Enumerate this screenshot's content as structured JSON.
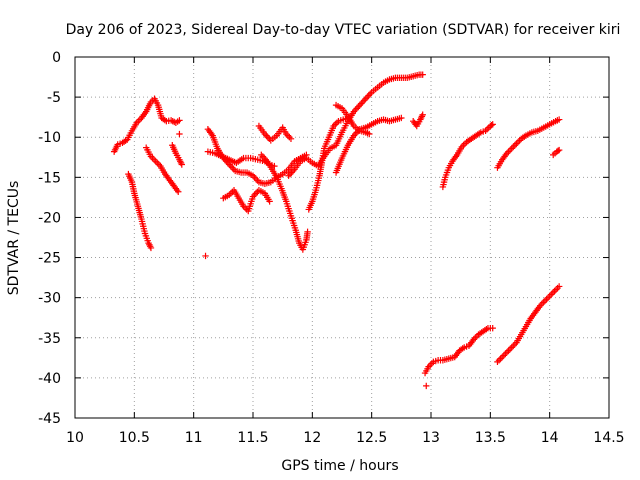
{
  "chart_data": {
    "type": "scatter",
    "title": "Day 206 of 2023, Sidereal Day-to-day VTEC variation (SDTVAR) for receiver kiri",
    "xlabel": "GPS time / hours",
    "ylabel": "SDTVAR / TECUs",
    "xlim": [
      10,
      14.5
    ],
    "ylim": [
      -45,
      0
    ],
    "xticks": [
      10,
      10.5,
      11,
      11.5,
      12,
      12.5,
      13,
      13.5,
      14,
      14.5
    ],
    "xtick_labels": [
      "10",
      "10.5",
      "11",
      "11.5",
      "12",
      "12.5",
      "13",
      "13.5",
      "14",
      "14.5"
    ],
    "yticks": [
      0,
      -5,
      -10,
      -15,
      -20,
      -25,
      -30,
      -35,
      -40,
      -45
    ],
    "ytick_labels": [
      "0",
      "-5",
      "-10",
      "-15",
      "-20",
      "-25",
      "-30",
      "-35",
      "-40",
      "-45"
    ],
    "grid": true,
    "marker": "+",
    "marker_color": "#ff0000",
    "series": [
      {
        "name": "track-1",
        "points": [
          [
            10.33,
            -11.8
          ],
          [
            10.36,
            -10.9
          ],
          [
            10.4,
            -10.7
          ],
          [
            10.44,
            -10.3
          ],
          [
            10.48,
            -9.2
          ],
          [
            10.52,
            -8.2
          ],
          [
            10.56,
            -7.6
          ],
          [
            10.6,
            -6.8
          ],
          [
            10.64,
            -5.6
          ],
          [
            10.67,
            -5.2
          ],
          [
            10.7,
            -6.0
          ],
          [
            10.73,
            -7.6
          ],
          [
            10.77,
            -8.0
          ],
          [
            10.81,
            -7.9
          ],
          [
            10.85,
            -8.2
          ],
          [
            10.88,
            -7.9
          ]
        ]
      },
      {
        "name": "track-2",
        "points": [
          [
            10.45,
            -14.6
          ],
          [
            10.48,
            -15.6
          ],
          [
            10.5,
            -17.0
          ],
          [
            10.53,
            -18.6
          ],
          [
            10.56,
            -20.2
          ],
          [
            10.59,
            -22.0
          ],
          [
            10.62,
            -23.2
          ],
          [
            10.64,
            -23.8
          ]
        ]
      },
      {
        "name": "track-3",
        "points": [
          [
            10.6,
            -11.3
          ],
          [
            10.64,
            -12.4
          ],
          [
            10.68,
            -13.0
          ],
          [
            10.72,
            -13.6
          ],
          [
            10.76,
            -14.6
          ],
          [
            10.8,
            -15.4
          ],
          [
            10.84,
            -16.2
          ],
          [
            10.87,
            -16.8
          ]
        ]
      },
      {
        "name": "track-4",
        "points": [
          [
            10.82,
            -11.0
          ],
          [
            10.85,
            -12.0
          ],
          [
            10.88,
            -12.8
          ],
          [
            10.9,
            -13.4
          ]
        ]
      },
      {
        "name": "track-5",
        "points": [
          [
            10.88,
            -9.6
          ]
        ]
      },
      {
        "name": "track-6",
        "points": [
          [
            11.1,
            -24.8
          ]
        ]
      },
      {
        "name": "track-7",
        "points": [
          [
            11.12,
            -9.0
          ],
          [
            11.16,
            -9.8
          ],
          [
            11.2,
            -11.4
          ],
          [
            11.25,
            -12.6
          ],
          [
            11.3,
            -13.4
          ],
          [
            11.35,
            -14.2
          ],
          [
            11.4,
            -14.4
          ],
          [
            11.45,
            -14.4
          ],
          [
            11.5,
            -14.8
          ],
          [
            11.55,
            -15.6
          ],
          [
            11.6,
            -15.8
          ],
          [
            11.65,
            -15.6
          ],
          [
            11.7,
            -15.0
          ],
          [
            11.75,
            -14.6
          ],
          [
            11.8,
            -14.0
          ],
          [
            11.85,
            -13.0
          ],
          [
            11.9,
            -12.6
          ],
          [
            11.95,
            -12.2
          ]
        ]
      },
      {
        "name": "track-8",
        "points": [
          [
            11.12,
            -11.8
          ],
          [
            11.18,
            -12.0
          ],
          [
            11.24,
            -12.4
          ],
          [
            11.3,
            -12.8
          ],
          [
            11.36,
            -13.2
          ],
          [
            11.42,
            -12.6
          ],
          [
            11.48,
            -12.6
          ],
          [
            11.54,
            -12.8
          ],
          [
            11.6,
            -13.0
          ],
          [
            11.64,
            -13.4
          ],
          [
            11.68,
            -13.6
          ]
        ]
      },
      {
        "name": "track-9",
        "points": [
          [
            11.25,
            -17.6
          ],
          [
            11.3,
            -17.2
          ],
          [
            11.34,
            -16.6
          ],
          [
            11.38,
            -17.6
          ],
          [
            11.42,
            -18.6
          ],
          [
            11.46,
            -19.2
          ],
          [
            11.5,
            -17.4
          ],
          [
            11.55,
            -16.6
          ],
          [
            11.6,
            -17.0
          ],
          [
            11.64,
            -18.0
          ]
        ]
      },
      {
        "name": "track-10",
        "points": [
          [
            11.55,
            -8.6
          ],
          [
            11.6,
            -9.6
          ],
          [
            11.65,
            -10.4
          ],
          [
            11.7,
            -9.8
          ],
          [
            11.75,
            -8.8
          ],
          [
            11.78,
            -9.6
          ],
          [
            11.82,
            -10.2
          ]
        ]
      },
      {
        "name": "track-11",
        "points": [
          [
            11.57,
            -12.2
          ],
          [
            11.62,
            -13.0
          ],
          [
            11.66,
            -14.0
          ],
          [
            11.7,
            -15.0
          ],
          [
            11.74,
            -16.4
          ],
          [
            11.78,
            -18.0
          ],
          [
            11.82,
            -19.8
          ],
          [
            11.86,
            -21.6
          ],
          [
            11.89,
            -23.2
          ],
          [
            11.92,
            -24.0
          ],
          [
            11.95,
            -22.8
          ],
          [
            11.96,
            -21.8
          ]
        ]
      },
      {
        "name": "track-12",
        "points": [
          [
            11.8,
            -14.8
          ],
          [
            11.85,
            -14.0
          ],
          [
            11.9,
            -13.0
          ],
          [
            11.95,
            -12.6
          ],
          [
            12.0,
            -13.2
          ],
          [
            12.05,
            -13.6
          ],
          [
            12.1,
            -12.4
          ],
          [
            12.15,
            -11.4
          ],
          [
            12.2,
            -11.0
          ],
          [
            12.25,
            -9.4
          ],
          [
            12.3,
            -8.0
          ],
          [
            12.35,
            -6.8
          ],
          [
            12.4,
            -6.0
          ],
          [
            12.45,
            -5.2
          ],
          [
            12.5,
            -4.4
          ],
          [
            12.55,
            -3.8
          ],
          [
            12.6,
            -3.2
          ],
          [
            12.65,
            -2.8
          ],
          [
            12.7,
            -2.6
          ],
          [
            12.75,
            -2.6
          ],
          [
            12.8,
            -2.6
          ],
          [
            12.85,
            -2.4
          ],
          [
            12.9,
            -2.2
          ],
          [
            12.93,
            -2.2
          ]
        ]
      },
      {
        "name": "track-13",
        "points": [
          [
            11.97,
            -19.0
          ],
          [
            12.0,
            -18.0
          ],
          [
            12.03,
            -16.6
          ],
          [
            12.06,
            -14.8
          ],
          [
            12.08,
            -13.2
          ],
          [
            12.1,
            -11.4
          ],
          [
            12.14,
            -10.0
          ],
          [
            12.18,
            -8.6
          ],
          [
            12.22,
            -8.0
          ],
          [
            12.26,
            -7.8
          ],
          [
            12.3,
            -7.6
          ]
        ]
      },
      {
        "name": "track-14",
        "points": [
          [
            12.2,
            -6.0
          ],
          [
            12.25,
            -6.4
          ],
          [
            12.3,
            -7.4
          ],
          [
            12.35,
            -8.6
          ],
          [
            12.4,
            -9.2
          ],
          [
            12.45,
            -9.4
          ],
          [
            12.48,
            -9.6
          ]
        ]
      },
      {
        "name": "track-15",
        "points": [
          [
            12.2,
            -14.4
          ],
          [
            12.25,
            -12.6
          ],
          [
            12.3,
            -11.0
          ],
          [
            12.35,
            -9.8
          ],
          [
            12.4,
            -9.0
          ],
          [
            12.45,
            -8.8
          ],
          [
            12.5,
            -8.4
          ],
          [
            12.55,
            -8.0
          ],
          [
            12.6,
            -7.8
          ],
          [
            12.65,
            -8.0
          ],
          [
            12.7,
            -7.8
          ],
          [
            12.75,
            -7.6
          ]
        ]
      },
      {
        "name": "track-16",
        "points": [
          [
            12.85,
            -8.0
          ],
          [
            12.88,
            -8.6
          ],
          [
            12.91,
            -7.8
          ],
          [
            12.93,
            -7.2
          ]
        ]
      },
      {
        "name": "track-17",
        "points": [
          [
            13.1,
            -16.2
          ],
          [
            13.12,
            -15.0
          ],
          [
            13.15,
            -13.8
          ],
          [
            13.18,
            -13.0
          ],
          [
            13.22,
            -12.2
          ],
          [
            13.26,
            -11.2
          ],
          [
            13.3,
            -10.6
          ],
          [
            13.34,
            -10.2
          ],
          [
            13.38,
            -9.8
          ],
          [
            13.42,
            -9.4
          ],
          [
            13.46,
            -9.2
          ],
          [
            13.5,
            -8.6
          ],
          [
            13.52,
            -8.4
          ]
        ]
      },
      {
        "name": "track-18",
        "points": [
          [
            13.56,
            -13.8
          ],
          [
            13.6,
            -12.8
          ],
          [
            13.64,
            -12.0
          ],
          [
            13.68,
            -11.4
          ],
          [
            13.72,
            -10.8
          ],
          [
            13.76,
            -10.2
          ],
          [
            13.8,
            -9.8
          ],
          [
            13.85,
            -9.4
          ],
          [
            13.9,
            -9.2
          ],
          [
            13.95,
            -8.8
          ],
          [
            14.0,
            -8.4
          ],
          [
            14.05,
            -8.0
          ],
          [
            14.08,
            -7.8
          ]
        ]
      },
      {
        "name": "track-19",
        "points": [
          [
            14.03,
            -12.2
          ],
          [
            14.06,
            -11.8
          ],
          [
            14.08,
            -11.6
          ]
        ]
      },
      {
        "name": "track-20",
        "points": [
          [
            12.95,
            -39.4
          ],
          [
            12.98,
            -38.6
          ],
          [
            13.02,
            -38.0
          ],
          [
            13.06,
            -37.8
          ],
          [
            13.1,
            -37.8
          ],
          [
            13.15,
            -37.6
          ],
          [
            13.2,
            -37.4
          ],
          [
            13.24,
            -36.6
          ],
          [
            13.28,
            -36.2
          ],
          [
            13.32,
            -36.0
          ],
          [
            13.36,
            -35.2
          ],
          [
            13.4,
            -34.6
          ],
          [
            13.44,
            -34.2
          ],
          [
            13.48,
            -33.8
          ],
          [
            13.52,
            -33.8
          ]
        ]
      },
      {
        "name": "track-21",
        "points": [
          [
            12.96,
            -41.0
          ]
        ]
      },
      {
        "name": "track-22",
        "points": [
          [
            13.56,
            -38.0
          ],
          [
            13.6,
            -37.4
          ],
          [
            13.64,
            -36.8
          ],
          [
            13.68,
            -36.2
          ],
          [
            13.72,
            -35.6
          ],
          [
            13.76,
            -34.6
          ],
          [
            13.8,
            -33.6
          ],
          [
            13.84,
            -32.6
          ],
          [
            13.88,
            -31.8
          ],
          [
            13.92,
            -31.0
          ],
          [
            13.96,
            -30.4
          ],
          [
            14.0,
            -29.8
          ],
          [
            14.04,
            -29.2
          ],
          [
            14.08,
            -28.6
          ]
        ]
      }
    ]
  }
}
